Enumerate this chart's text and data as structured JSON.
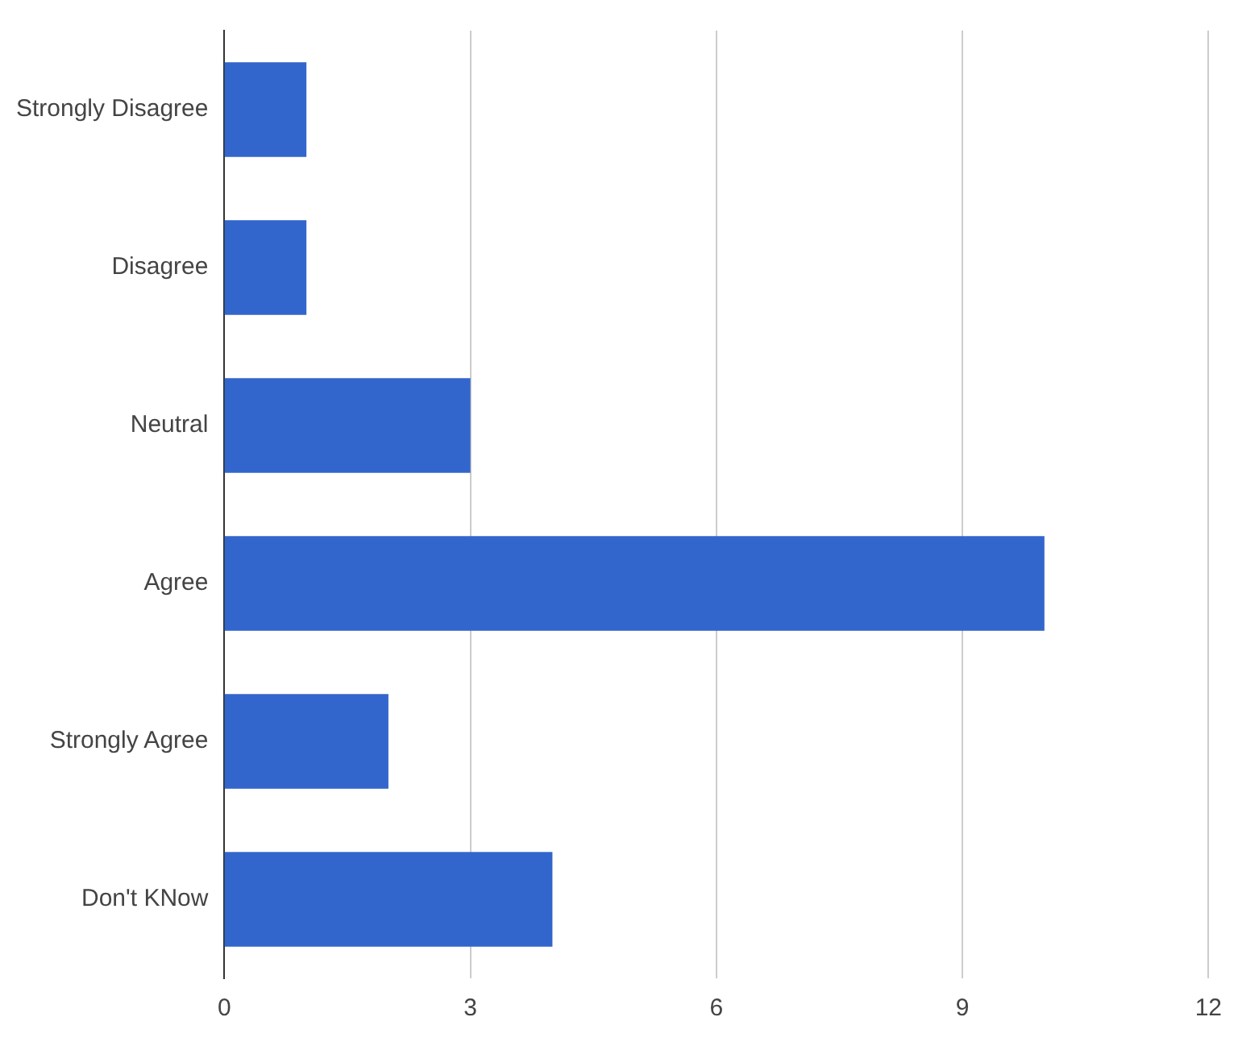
{
  "chart_data": {
    "type": "bar",
    "orientation": "horizontal",
    "categories": [
      "Strongly Disagree",
      "Disagree",
      "Neutral",
      "Agree",
      "Strongly Agree",
      "Don't KNow"
    ],
    "values": [
      1,
      1,
      3,
      10,
      2,
      4
    ],
    "color": "#3366cc",
    "xlim": [
      0,
      12
    ],
    "xticks": [
      0,
      3,
      6,
      9,
      12
    ],
    "grid": "x",
    "legend": false
  }
}
